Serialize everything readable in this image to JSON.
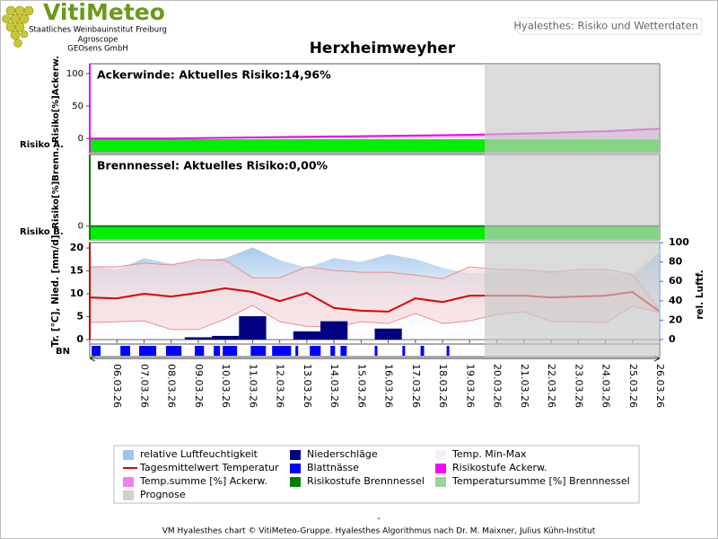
{
  "header": {
    "logo": "VitiMeteo",
    "org": [
      "Staatliches Weinbauinstitut Freiburg",
      "Agroscope",
      "GEOsens GmbH"
    ],
    "page_title": "Hyalesthes: Risiko und Wetterdaten"
  },
  "title": "Herxheimweyher",
  "forecast": {
    "start": 14.55,
    "color": "#c8c8c8"
  },
  "chart_data": [
    {
      "type": "risk",
      "annotation": "Ackerwinde: Aktuelles Risiko:14,96%",
      "ylabel": "Risiko[%]Ackerw.",
      "band_label": "Risiko A.",
      "band_color": "#00ee00",
      "axis_color": "#ee00ee",
      "ylim": [
        -22,
        115
      ],
      "yticks": [
        0,
        50,
        100
      ],
      "series": [
        {
          "color": "#ee00ee",
          "values": [
            0,
            0,
            0,
            0,
            0.5,
            1,
            1.5,
            2,
            2.5,
            3,
            3.5,
            4,
            4.5,
            5,
            5.5,
            6.5,
            7.5,
            8.5,
            10,
            11,
            13,
            14.96
          ]
        }
      ]
    },
    {
      "type": "risk",
      "annotation": "Brennnessel: Aktuelles Risiko:0,00%",
      "ylabel": "Risiko[%]Brenn.",
      "band_label": "Risiko B.",
      "band_color": "#00ee00",
      "axis_color": "#008000",
      "ylim": [
        -22,
        115
      ],
      "yticks": [
        0
      ],
      "series": [
        {
          "color": "#008000",
          "values": [
            0,
            0,
            0,
            0,
            0,
            0,
            0,
            0,
            0,
            0,
            0,
            0,
            0,
            0,
            0,
            0,
            0,
            0,
            0,
            0,
            0,
            0
          ]
        }
      ]
    },
    {
      "type": "weather",
      "ylabel": "Tr. [°C], Nied. [mm/d]",
      "y2label": "rel. Luftf.",
      "bn_label": "BN",
      "categories": [
        null,
        "06.03.26",
        "07.03.26",
        "08.03.26",
        "09.03.26",
        "10.03.26",
        "11.03.26",
        "12.03.26",
        "13.03.26",
        "14.03.26",
        "15.03.26",
        "16.03.26",
        "17.03.26",
        "18.03.26",
        "19.03.26",
        "20.03.26",
        "21.03.26",
        "22.03.26",
        "23.03.26",
        "24.03.26",
        "25.03.26",
        "26.03.26"
      ],
      "ylim": [
        0,
        21.2
      ],
      "yticks": [
        0,
        5,
        10,
        15,
        20
      ],
      "y2lim": [
        0,
        100
      ],
      "y2ticks": [
        0,
        20,
        40,
        60,
        80,
        100
      ],
      "humidity": {
        "color": "#9cc4ec",
        "axis": "y2",
        "values": [
          76,
          72,
          84,
          78,
          81,
          84,
          95,
          82,
          74,
          84,
          80,
          88,
          83,
          74,
          68,
          69,
          71,
          71,
          69,
          69,
          67,
          90
        ]
      },
      "temp_max": {
        "color": "#f08c8c",
        "values": [
          15.9,
          15.9,
          16.7,
          16.3,
          17.5,
          17.3,
          13.5,
          13.5,
          15.9,
          15.1,
          14.7,
          14.7,
          14.1,
          13.3,
          15.9,
          15.3,
          15.3,
          14.7,
          15.3,
          15.3,
          14.3,
          6.5
        ]
      },
      "temp_min": {
        "color": "#f08c8c",
        "values": [
          3.7,
          3.9,
          4.1,
          2.2,
          2.2,
          4.5,
          7.5,
          3.9,
          2.9,
          2.7,
          3.9,
          3.5,
          5.7,
          3.5,
          4.1,
          5.5,
          6.1,
          3.9,
          3.9,
          3.7,
          7.3,
          5.9
        ]
      },
      "temp_mean": {
        "color": "#e00000",
        "values": [
          9.2,
          9.0,
          10.0,
          9.4,
          10.2,
          11.2,
          10.4,
          8.4,
          10.2,
          6.9,
          6.3,
          6.1,
          9.0,
          8.2,
          9.6,
          9.6,
          9.6,
          9.2,
          9.4,
          9.6,
          10.4,
          6.1
        ]
      },
      "precipitation": {
        "color": "#000080",
        "values": [
          0,
          0,
          0,
          0,
          0.5,
          0.8,
          5.1,
          0,
          1.8,
          4.0,
          0,
          2.4,
          0,
          0,
          0,
          0,
          0,
          0,
          0,
          0,
          0,
          0
        ]
      },
      "leaf_wetness": {
        "color": "#0000ff",
        "intervals": [
          [
            0.07,
            0.4
          ],
          [
            1.13,
            1.49
          ],
          [
            1.82,
            2.45
          ],
          [
            2.81,
            3.38
          ],
          [
            3.87,
            4.21
          ],
          [
            4.57,
            4.8
          ],
          [
            4.9,
            5.43
          ],
          [
            5.93,
            6.49
          ],
          [
            6.72,
            7.42
          ],
          [
            7.58,
            7.68
          ],
          [
            8.11,
            8.51
          ],
          [
            8.87,
            9.04
          ],
          [
            9.24,
            9.47
          ],
          [
            10.5,
            10.6
          ],
          [
            11.52,
            11.62
          ],
          [
            12.19,
            12.32
          ],
          [
            13.15,
            13.25
          ]
        ]
      }
    }
  ],
  "legend": [
    {
      "name": "relative Luftfeuchtigkeit",
      "color": "#9cc4ec"
    },
    {
      "name": "Niederschläge",
      "color": "#000080"
    },
    {
      "name": "Temp. Min-Max",
      "color": "#f2f2f2"
    },
    {
      "name": "Tagesmittelwert Temperatur",
      "color": "#e00000",
      "style": "line"
    },
    {
      "name": "Blattnässe",
      "color": "#0000ff"
    },
    {
      "name": "Risikostufe Ackerw.",
      "color": "#ff00ff"
    },
    {
      "name": "Temp.summe [%] Ackerw.",
      "color": "#f080f0"
    },
    {
      "name": "Risikostufe Brennnessel",
      "color": "#008000"
    },
    {
      "name": "Temperatursumme [%] Brennnessel",
      "color": "#9ad29a"
    },
    {
      "name": "Prognose",
      "color": "#d0d0d0"
    }
  ],
  "footer": {
    "mark": "-",
    "text": "VM Hyalesthes chart © VitiMeteo-Gruppe. Hyalesthes Algorithmus nach Dr. M. Maixner, Julius Kühn-Institut"
  }
}
